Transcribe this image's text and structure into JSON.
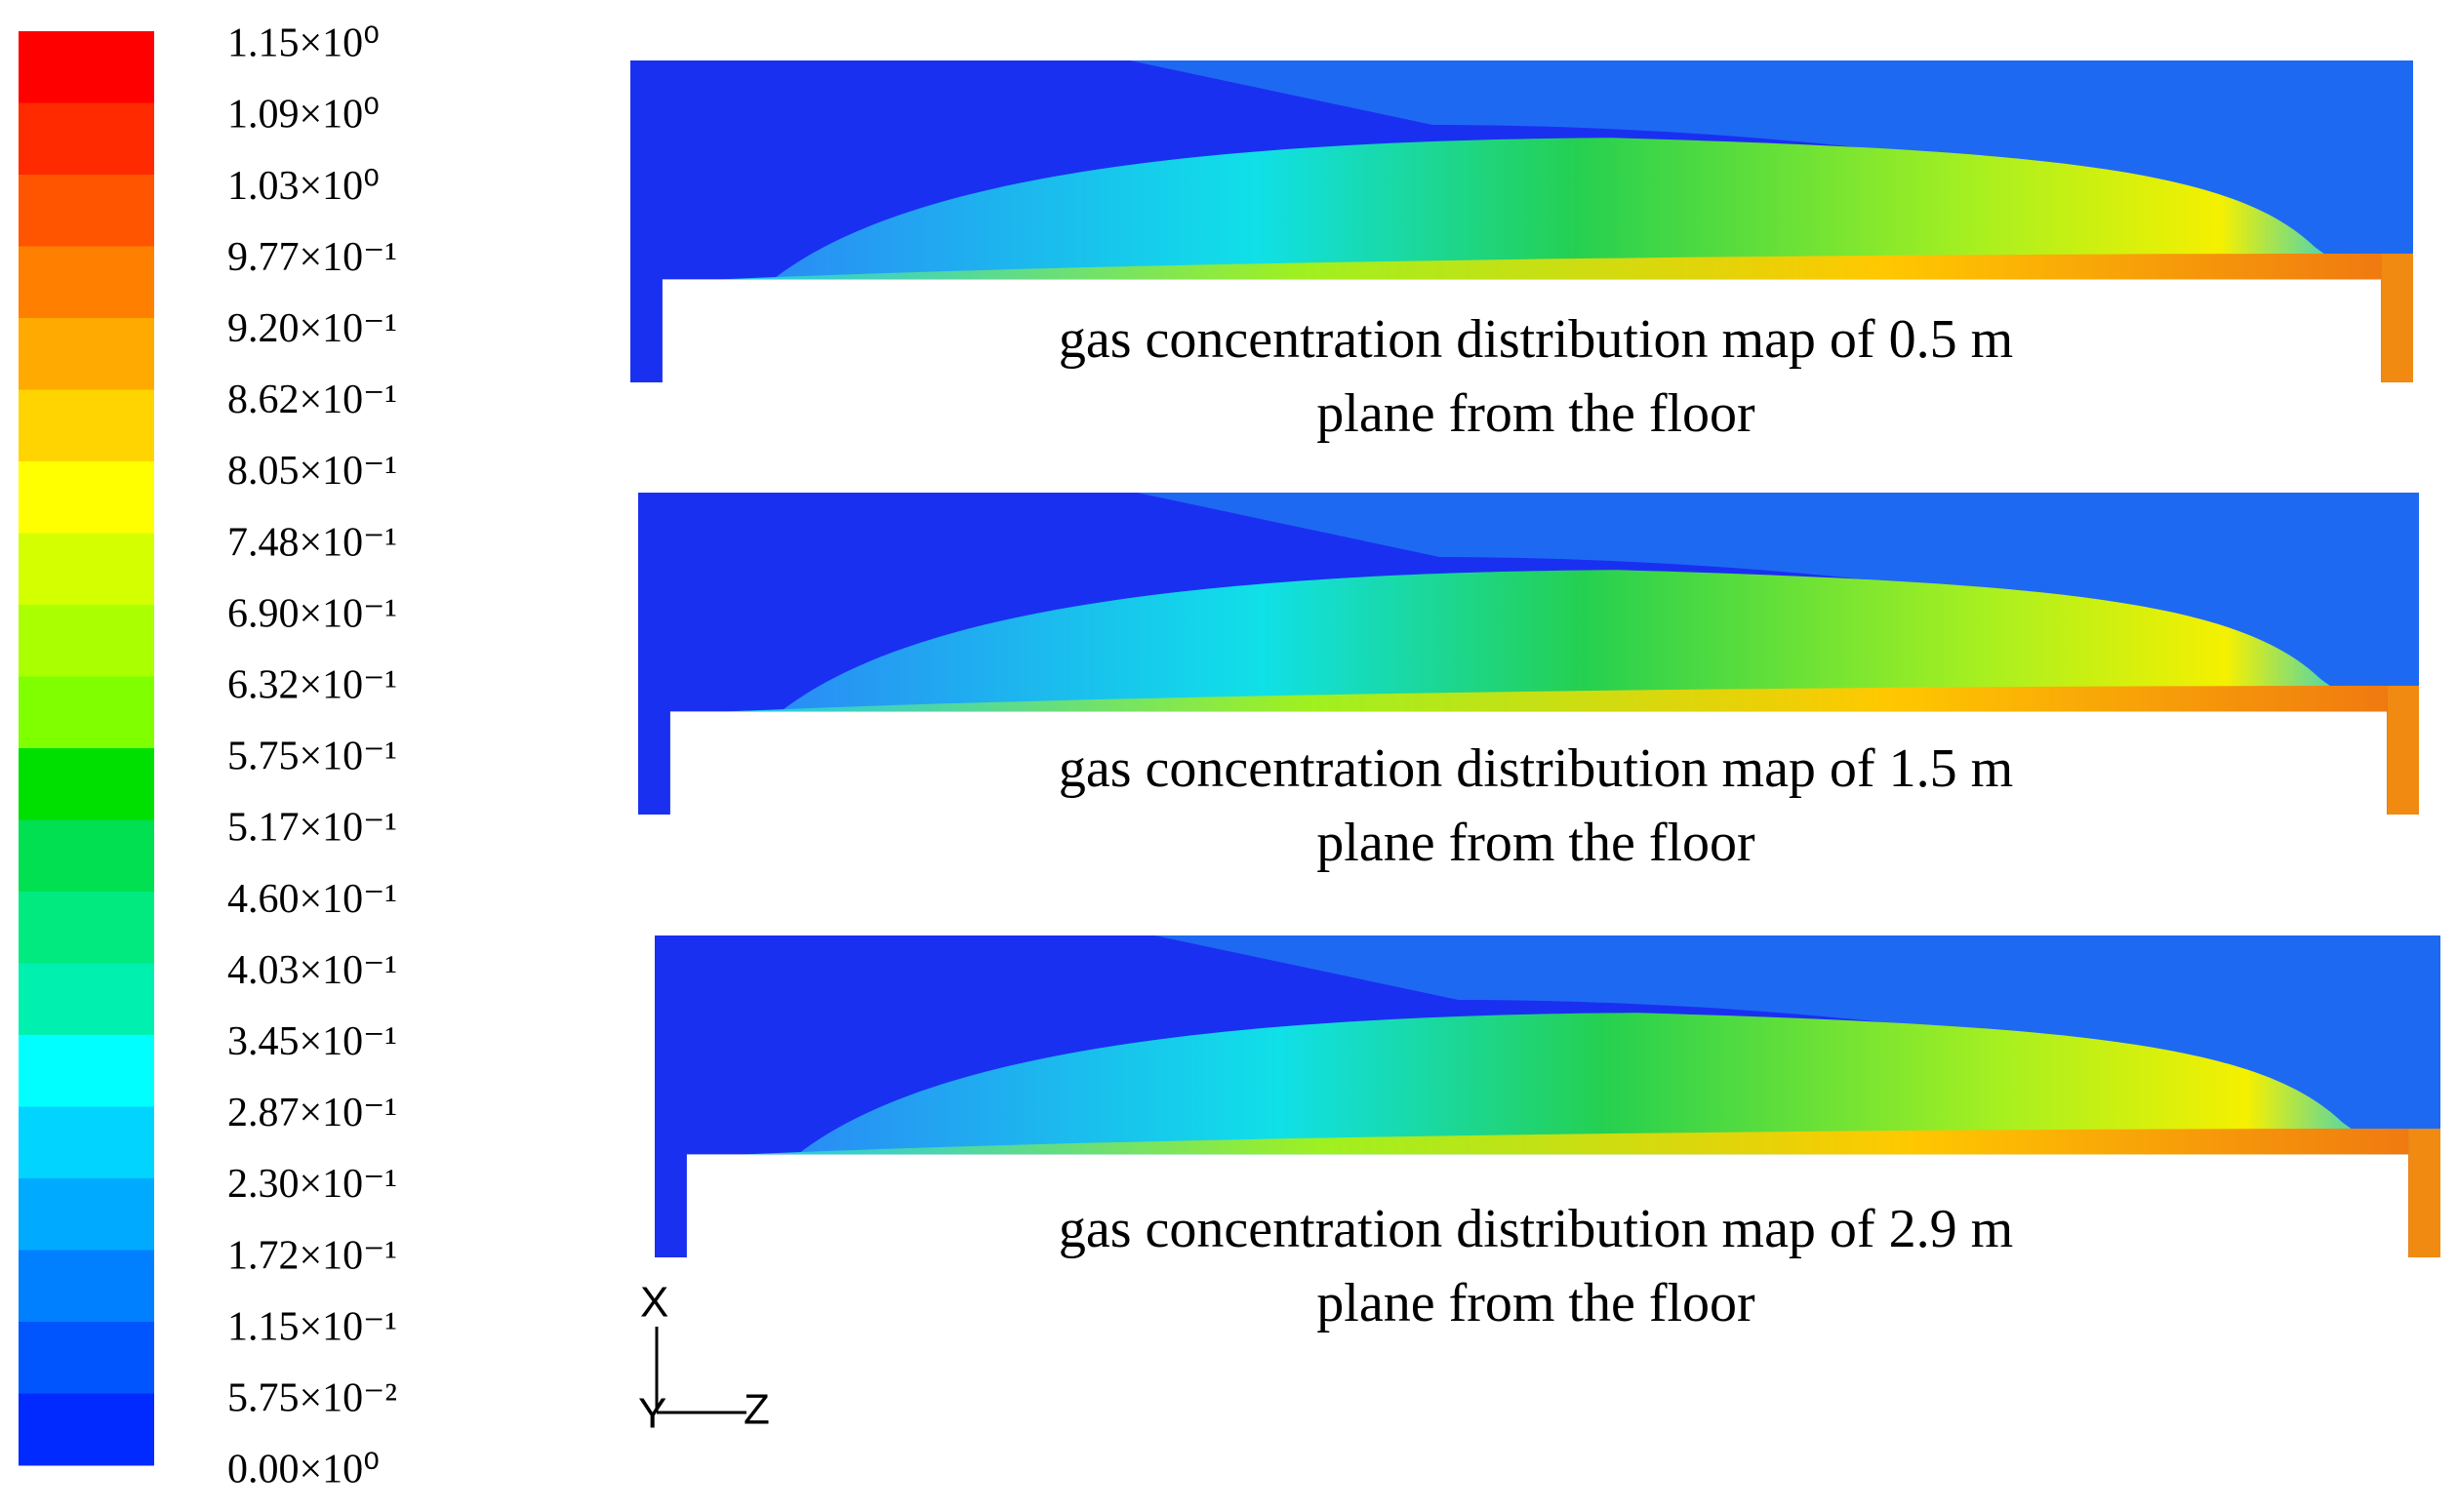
{
  "colorbar": {
    "labels": [
      "1.15×10⁰",
      "1.09×10⁰",
      "1.03×10⁰",
      "9.77×10⁻¹",
      "9.20×10⁻¹",
      "8.62×10⁻¹",
      "8.05×10⁻¹",
      "7.48×10⁻¹",
      "6.90×10⁻¹",
      "6.32×10⁻¹",
      "5.75×10⁻¹",
      "5.17×10⁻¹",
      "4.60×10⁻¹",
      "4.03×10⁻¹",
      "3.45×10⁻¹",
      "2.87×10⁻¹",
      "2.30×10⁻¹",
      "1.72×10⁻¹",
      "1.15×10⁻¹",
      "5.75×10⁻²",
      "0.00×10⁰"
    ],
    "colors": [
      "#ff0000",
      "#ff2a00",
      "#ff5500",
      "#ff7f00",
      "#ffaa00",
      "#ffd400",
      "#ffff00",
      "#d4ff00",
      "#aaff00",
      "#7fff00",
      "#00e000",
      "#00e050",
      "#00ea80",
      "#00f0b0",
      "#00ffff",
      "#00d4ff",
      "#00aaff",
      "#007fff",
      "#0055ff",
      "#002aff"
    ]
  },
  "panels": [
    {
      "caption": [
        "gas concentration distribution map of 0.5 m",
        "plane from the floor"
      ]
    },
    {
      "caption": [
        "gas concentration distribution map of 1.5 m",
        "plane from the floor"
      ]
    },
    {
      "caption": [
        "gas concentration distribution map of 2.9 m",
        "plane from the floor"
      ]
    }
  ],
  "axes": {
    "x": "X",
    "y": "Y",
    "z": "Z"
  }
}
